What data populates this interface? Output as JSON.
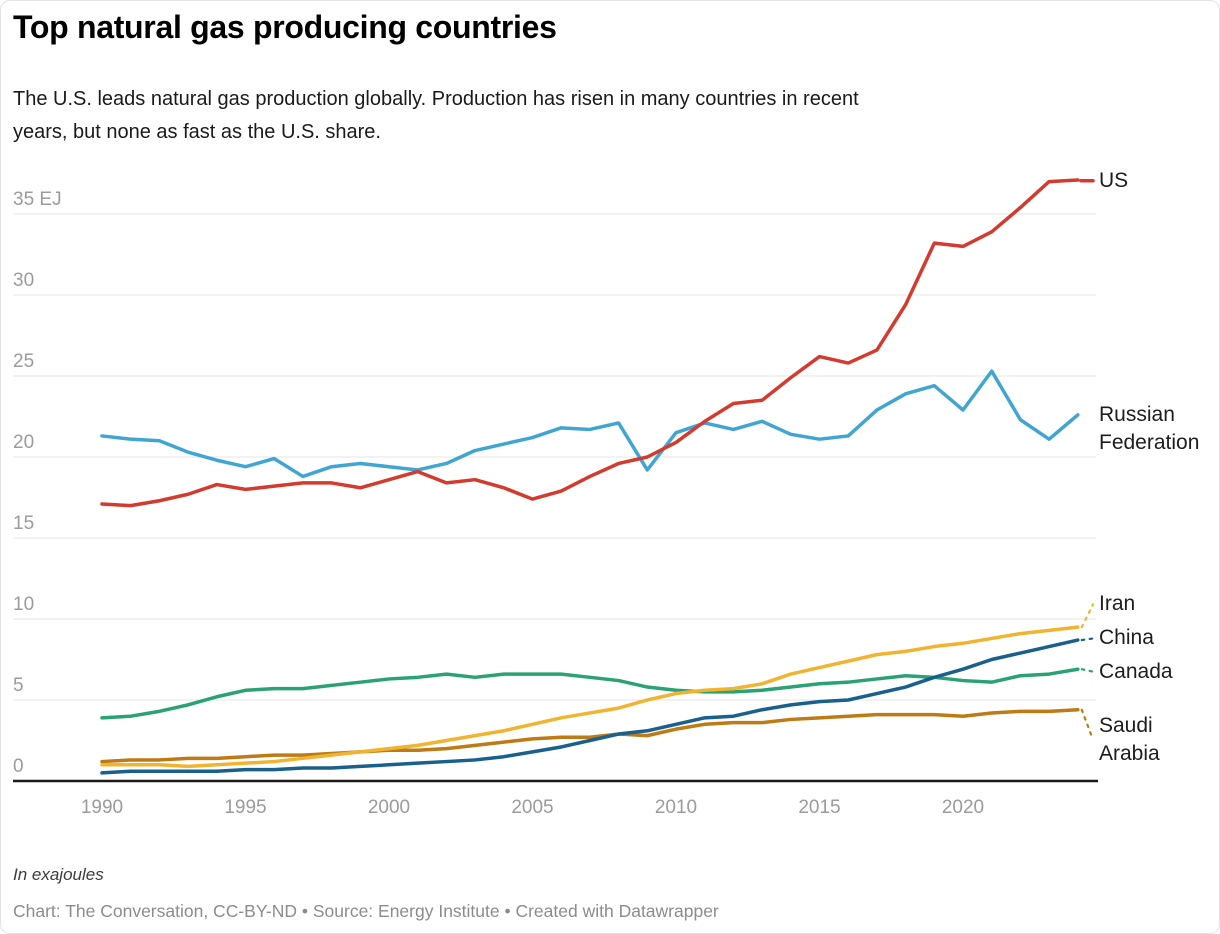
{
  "header": {
    "title": "Top natural gas producing countries",
    "subtitle": "The U.S. leads natural gas production globally. Production has risen in many countries in recent years, but none as fast as the U.S. share.",
    "subtitle_lines": [
      "The U.S. leads natural gas production globally. Production has risen in many countries in recent",
      "years, but none as fast as the U.S. share."
    ]
  },
  "footer": {
    "note": "In exajoules",
    "attribution": "Chart: The Conversation, CC-BY-ND • Source: Energy Institute • Created with Datawrapper"
  },
  "colors": {
    "background": "#ffffff",
    "gridline": "#e4e4e4",
    "axis_line": "#191919",
    "tick_label": "#9b9b9b",
    "series_label": "#1d1d1d"
  },
  "chart_data": {
    "type": "line",
    "title": "Top natural gas producing countries",
    "unit": "EJ",
    "ylabel": "In exajoules",
    "xlabel": "",
    "xlim": [
      1990,
      2024
    ],
    "ylim": [
      0,
      37.5
    ],
    "grid": "horizontal",
    "legend_position": "right-direct-labels",
    "x": [
      1990,
      1991,
      1992,
      1993,
      1994,
      1995,
      1996,
      1997,
      1998,
      1999,
      2000,
      2001,
      2002,
      2003,
      2004,
      2005,
      2006,
      2007,
      2008,
      2009,
      2010,
      2011,
      2012,
      2013,
      2014,
      2015,
      2016,
      2017,
      2018,
      2019,
      2020,
      2021,
      2022,
      2023,
      2024
    ],
    "yticks": [
      {
        "v": 0,
        "label": "0"
      },
      {
        "v": 5,
        "label": "5"
      },
      {
        "v": 10,
        "label": "10"
      },
      {
        "v": 15,
        "label": "15"
      },
      {
        "v": 20,
        "label": "20"
      },
      {
        "v": 25,
        "label": "25"
      },
      {
        "v": 30,
        "label": "30"
      },
      {
        "v": 35,
        "label": "35 EJ"
      }
    ],
    "xticks": [
      {
        "v": 1990,
        "label": "1990"
      },
      {
        "v": 1995,
        "label": "1995"
      },
      {
        "v": 2000,
        "label": "2000"
      },
      {
        "v": 2005,
        "label": "2005"
      },
      {
        "v": 2010,
        "label": "2010"
      },
      {
        "v": 2015,
        "label": "2015"
      },
      {
        "v": 2020,
        "label": "2020"
      }
    ],
    "series": [
      {
        "id": "us",
        "name": "US",
        "color": "#d23b2e",
        "label_value": 37.05,
        "connector": "solid",
        "values": [
          17.1,
          17.0,
          17.3,
          17.7,
          18.3,
          18.0,
          18.2,
          18.4,
          18.4,
          18.1,
          18.6,
          19.1,
          18.4,
          18.6,
          18.1,
          17.4,
          17.9,
          18.8,
          19.6,
          20.0,
          20.9,
          22.2,
          23.3,
          23.5,
          24.9,
          26.2,
          25.8,
          26.6,
          29.4,
          33.2,
          33.0,
          33.9,
          35.4,
          37.0,
          37.1
        ]
      },
      {
        "id": "russian-federation",
        "name": "Russian Federation",
        "color": "#41a5d3",
        "label_value": 21.75,
        "connector": "none",
        "values": [
          21.3,
          21.1,
          21.0,
          20.3,
          19.8,
          19.4,
          19.9,
          18.8,
          19.4,
          19.6,
          19.4,
          19.2,
          19.6,
          20.4,
          20.8,
          21.2,
          21.8,
          21.7,
          22.1,
          19.2,
          21.5,
          22.1,
          21.7,
          22.2,
          21.4,
          21.1,
          21.3,
          22.9,
          23.9,
          24.4,
          22.9,
          25.3,
          22.3,
          21.1,
          22.6
        ]
      },
      {
        "id": "iran",
        "name": "Iran",
        "color": "#f0b431",
        "label_value": 10.9,
        "connector": "dotted",
        "values": [
          1.0,
          1.0,
          1.0,
          0.9,
          1.0,
          1.1,
          1.2,
          1.4,
          1.6,
          1.8,
          2.0,
          2.2,
          2.5,
          2.8,
          3.1,
          3.5,
          3.9,
          4.2,
          4.5,
          5.0,
          5.4,
          5.6,
          5.7,
          6.0,
          6.6,
          7.0,
          7.4,
          7.8,
          8.0,
          8.3,
          8.5,
          8.8,
          9.1,
          9.3,
          9.5
        ]
      },
      {
        "id": "china",
        "name": "China",
        "color": "#19608d",
        "label_value": 8.8,
        "connector": "dotted",
        "values": [
          0.5,
          0.6,
          0.6,
          0.6,
          0.6,
          0.7,
          0.7,
          0.8,
          0.8,
          0.9,
          1.0,
          1.1,
          1.2,
          1.3,
          1.5,
          1.8,
          2.1,
          2.5,
          2.9,
          3.1,
          3.5,
          3.9,
          4.0,
          4.4,
          4.7,
          4.9,
          5.0,
          5.4,
          5.8,
          6.4,
          6.9,
          7.5,
          7.9,
          8.3,
          8.7
        ]
      },
      {
        "id": "canada",
        "name": "Canada",
        "color": "#2ba274",
        "label_value": 6.75,
        "connector": "dotted",
        "values": [
          3.9,
          4.0,
          4.3,
          4.7,
          5.2,
          5.6,
          5.7,
          5.7,
          5.9,
          6.1,
          6.3,
          6.4,
          6.6,
          6.4,
          6.6,
          6.6,
          6.6,
          6.4,
          6.2,
          5.8,
          5.6,
          5.5,
          5.5,
          5.6,
          5.8,
          6.0,
          6.1,
          6.3,
          6.5,
          6.4,
          6.2,
          6.1,
          6.5,
          6.6,
          6.9
        ]
      },
      {
        "id": "saudi-arabia",
        "name": "Saudi Arabia",
        "color": "#bd7a15",
        "label_value": 2.55,
        "connector": "dotted",
        "values": [
          1.2,
          1.3,
          1.3,
          1.4,
          1.4,
          1.5,
          1.6,
          1.6,
          1.7,
          1.8,
          1.9,
          1.9,
          2.0,
          2.2,
          2.4,
          2.6,
          2.7,
          2.7,
          2.9,
          2.8,
          3.2,
          3.5,
          3.6,
          3.6,
          3.8,
          3.9,
          4.0,
          4.1,
          4.1,
          4.1,
          4.0,
          4.2,
          4.3,
          4.3,
          4.4
        ]
      }
    ]
  }
}
